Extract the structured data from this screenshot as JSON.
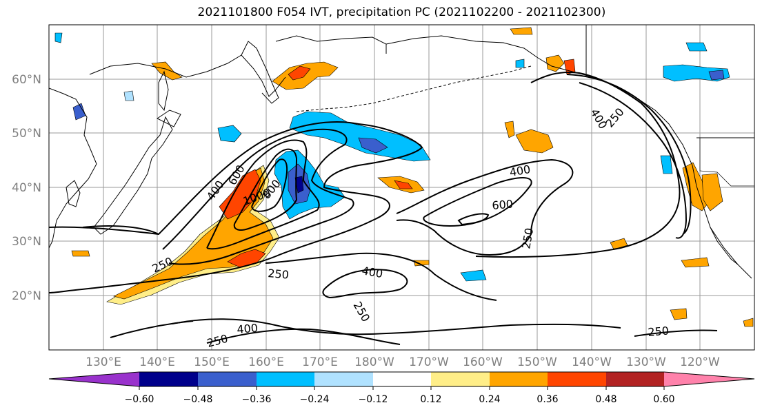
{
  "title": "2021101800 F054 IVT, precipitation PC (2021102200 - 2021102300)",
  "map": {
    "lon_labels": [
      "130°E",
      "140°E",
      "150°E",
      "160°E",
      "170°E",
      "180°W",
      "170°W",
      "160°W",
      "150°W",
      "140°W",
      "130°W",
      "120°W"
    ],
    "lat_labels": [
      "60°N",
      "50°N",
      "40°N",
      "30°N",
      "20°N"
    ],
    "contour_labels": [
      "400",
      "600",
      "1000",
      "800",
      "250",
      "400",
      "250",
      "400",
      "250",
      "400",
      "600",
      "250",
      "250",
      "400",
      "250",
      "250"
    ]
  },
  "colorbar": {
    "tick_labels": [
      "−0.60",
      "−0.48",
      "−0.36",
      "−0.24",
      "−0.12",
      "0.12",
      "0.24",
      "0.36",
      "0.48",
      "0.60"
    ],
    "colors": [
      "#9932cc",
      "#00008b",
      "#3a5fcd",
      "#00bfff",
      "#b0e2ff",
      "#ffffff",
      "#ffee88",
      "#ffa500",
      "#ff4500",
      "#b22222",
      "#ff82ab"
    ]
  },
  "palette": {
    "pos_light": "#ffee88",
    "pos_mid": "#ffa500",
    "pos_high": "#ff4500",
    "pos_max": "#b22222",
    "neg_light": "#b0e2ff",
    "neg_mid": "#00bfff",
    "neg_high": "#3a5fcd",
    "neg_max": "#00008b"
  }
}
